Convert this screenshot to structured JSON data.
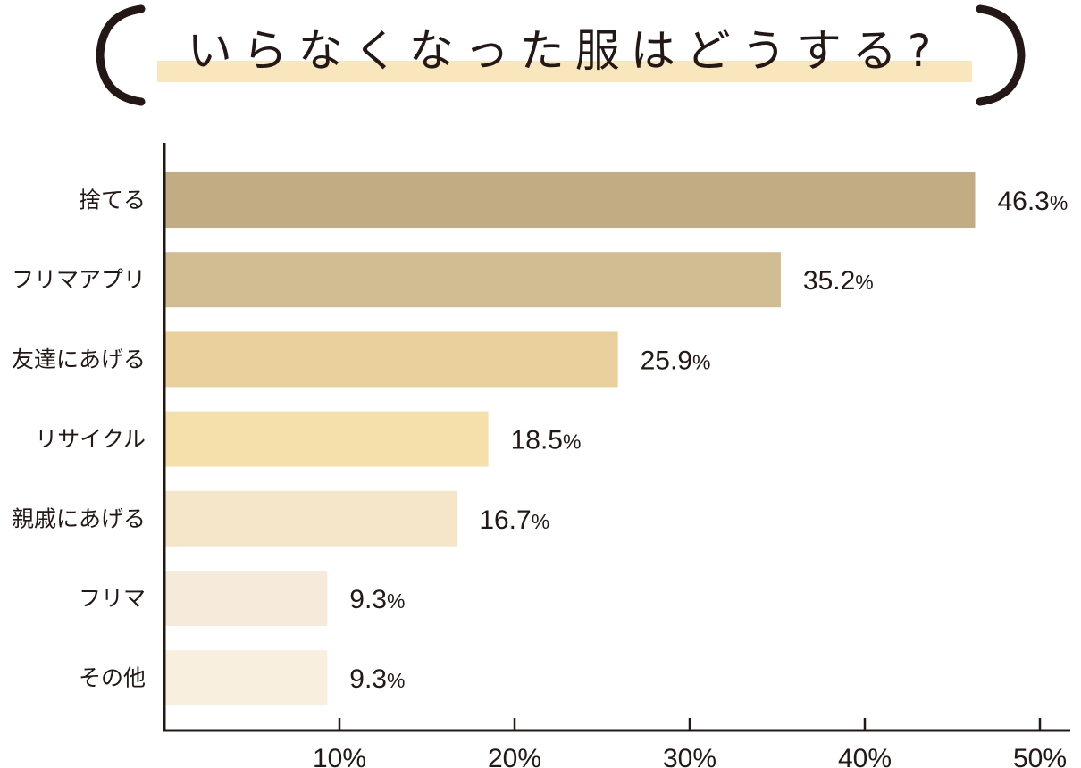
{
  "title": "いらなくなった服はどうする?",
  "colors": {
    "highlight": "#fae6bd",
    "text": "#231815",
    "bars": [
      "#c2ac83",
      "#d2bd93",
      "#e9d09d",
      "#f5dfab",
      "#f5e6ca",
      "#f6eada",
      "#f8efdf"
    ]
  },
  "chart_data": {
    "type": "bar",
    "orientation": "horizontal",
    "title": "いらなくなった服はどうする?",
    "categories": [
      "捨てる",
      "フリマアプリ",
      "友達にあげる",
      "リサイクル",
      "親戚にあげる",
      "フリマ",
      "その他"
    ],
    "values": [
      46.3,
      35.2,
      25.9,
      18.5,
      16.7,
      9.3,
      9.3
    ],
    "value_labels": [
      {
        "num": "46.3",
        "unit": "%"
      },
      {
        "num": "35.2",
        "unit": "%"
      },
      {
        "num": "25.9",
        "unit": "%"
      },
      {
        "num": "18.5",
        "unit": "%"
      },
      {
        "num": "16.7",
        "unit": "%"
      },
      {
        "num": "9.3",
        "unit": "%"
      },
      {
        "num": "9.3",
        "unit": "%"
      }
    ],
    "xticks": [
      10,
      20,
      30,
      40,
      50
    ],
    "xtick_labels": [
      "10%",
      "20%",
      "30%",
      "40%",
      "50%"
    ],
    "xlim": [
      0,
      50
    ],
    "xlabel": "",
    "ylabel": "",
    "grid": false,
    "legend": false
  }
}
